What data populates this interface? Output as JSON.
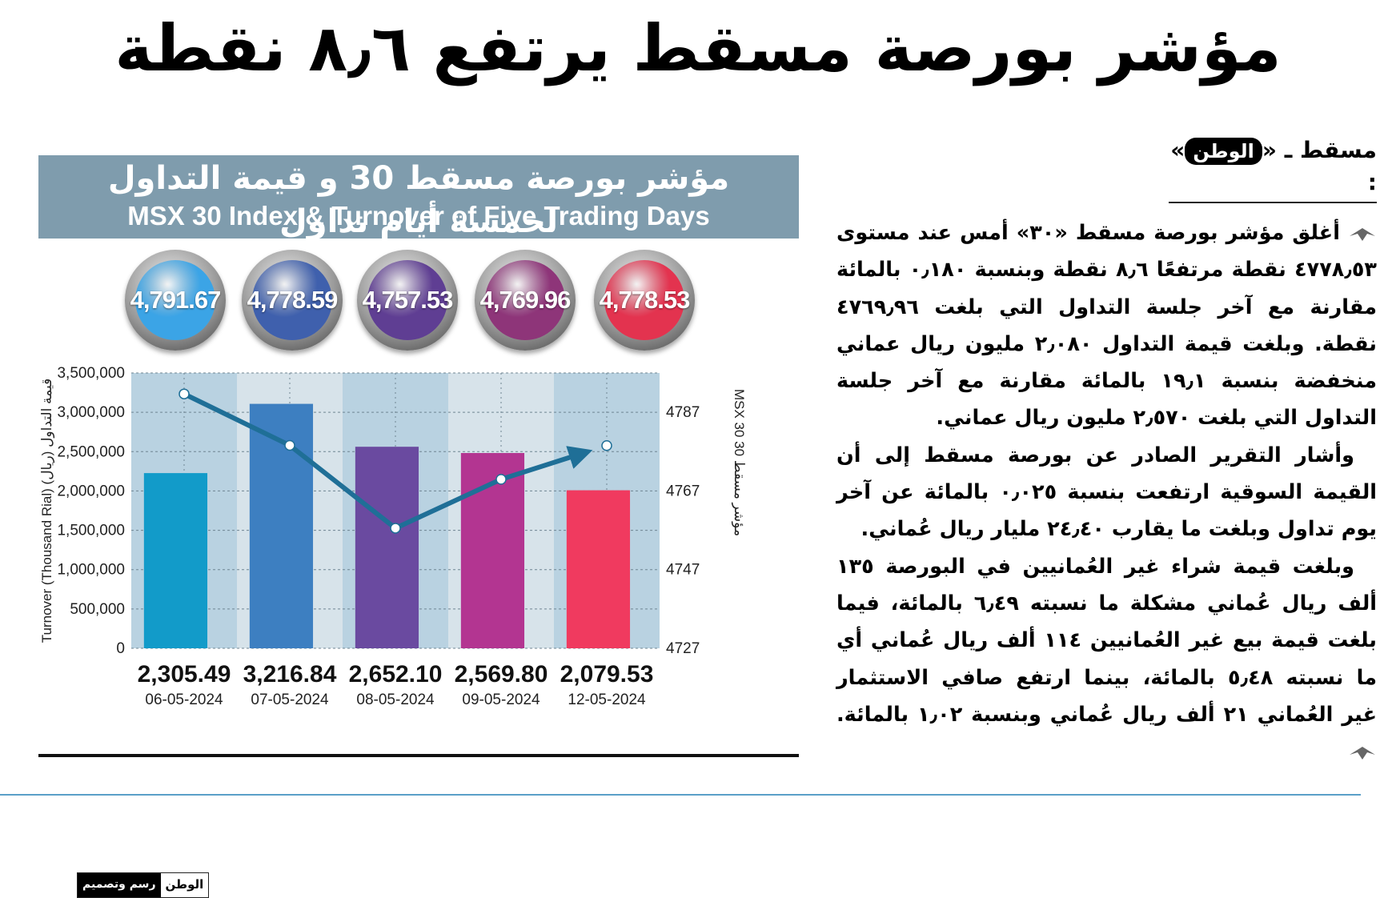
{
  "headline": "مؤشر بورصة مسقط يرتفع ٨٫٦ نقطة",
  "dateline": {
    "city": "مسقط ـ «",
    "brand": "الوطن",
    "end": "» :"
  },
  "article": {
    "p1": "أغلق مؤشر بورصة مسقط «٣٠» أمس عند مستوى ٤٧٧٨٫٥٣ نقطة مرتفعًا ٨٫٦ نقطة وبنسبة ٠٫١٨٠ بالمائة مقارنة مع آخر جلسة التداول التي بلغت ٤٧٦٩٫٩٦ نقطة. وبلغت قيمة التداول ٢٫٠٨٠ مليون ريال عماني منخفضة بنسبة ١٩٫١ بالمائة مقارنة مع آخر جلسة التداول التي بلغت ٢٫٥٧٠ مليون ريال عماني.",
    "p2": "وأشار التقرير الصادر عن بورصة مسقط إلى أن القيمة السوقية ارتفعت بنسبة ٠٫٠٢٥ بالمائة عن آخر يوم تداول وبلغت ما يقارب ٢٤٫٤٠ مليار ريال عُماني.",
    "p3": "وبلغت قيمة شراء غير العُمانيين في البورصة ١٣٥ ألف ريال عُماني مشكلة ما نسبته ٦٫٤٩ بالمائة، فيما بلغت قيمة بيع غير العُمانيين ١١٤ ألف ريال عُماني أي ما نسبته ٥٫٤٨ بالمائة، بينما ارتفع صافي الاستثمار غير العُماني ٢١ ألف ريال عُماني وبنسبة ١٫٠٢ بالمائة."
  },
  "infographic": {
    "title_ar": "مؤشر بورصة مسقط 30 و قيمة التداول لخمسة أيام تداول",
    "title_en": "MSX 30 Index & Turnover of Five Trading Days",
    "credit_text": "رسم وتصميم",
    "credit_brand": "الوطن"
  },
  "chart_data": {
    "type": "bar",
    "categories": [
      "06-05-2024",
      "07-05-2024",
      "08-05-2024",
      "09-05-2024",
      "12-05-2024"
    ],
    "series": [
      {
        "name": "Turnover (Thousand Rial)",
        "type": "bar",
        "values": [
          2305.49,
          3216.84,
          2652.1,
          2569.8,
          2079.53
        ],
        "labels": [
          "2,305.49",
          "3,216.84",
          "2,652.10",
          "2,569.80",
          "2,079.53"
        ]
      },
      {
        "name": "MSX 30",
        "type": "line",
        "values": [
          4791.67,
          4778.59,
          4757.53,
          4769.96,
          4778.53
        ],
        "labels": [
          "4,791.67",
          "4,778.59",
          "4,757.53",
          "4,769.96",
          "4,778.53"
        ]
      }
    ],
    "ylabel_left": "Turnover (Thousand Rial)  قيمة التداول (ريال)",
    "ylabel_right": "MSX 30  مؤشر مسقط 30",
    "yticks_left": [
      "0",
      "500,000",
      "1,000,000",
      "1,500,000",
      "2,000,000",
      "2,500,000",
      "3,000,000",
      "3,500,000"
    ],
    "yticks_right": [
      "4727",
      "4747",
      "4767",
      "4787"
    ],
    "bar_colors": [
      "#129bc9",
      "#3d7fc1",
      "#6a4aa0",
      "#b33591",
      "#f03a5f"
    ],
    "bubble_colors": [
      "#3ba4e6",
      "#3f60ad",
      "#5f3e93",
      "#8e3579",
      "#e3334f"
    ],
    "line_color": "#1f6f97"
  }
}
